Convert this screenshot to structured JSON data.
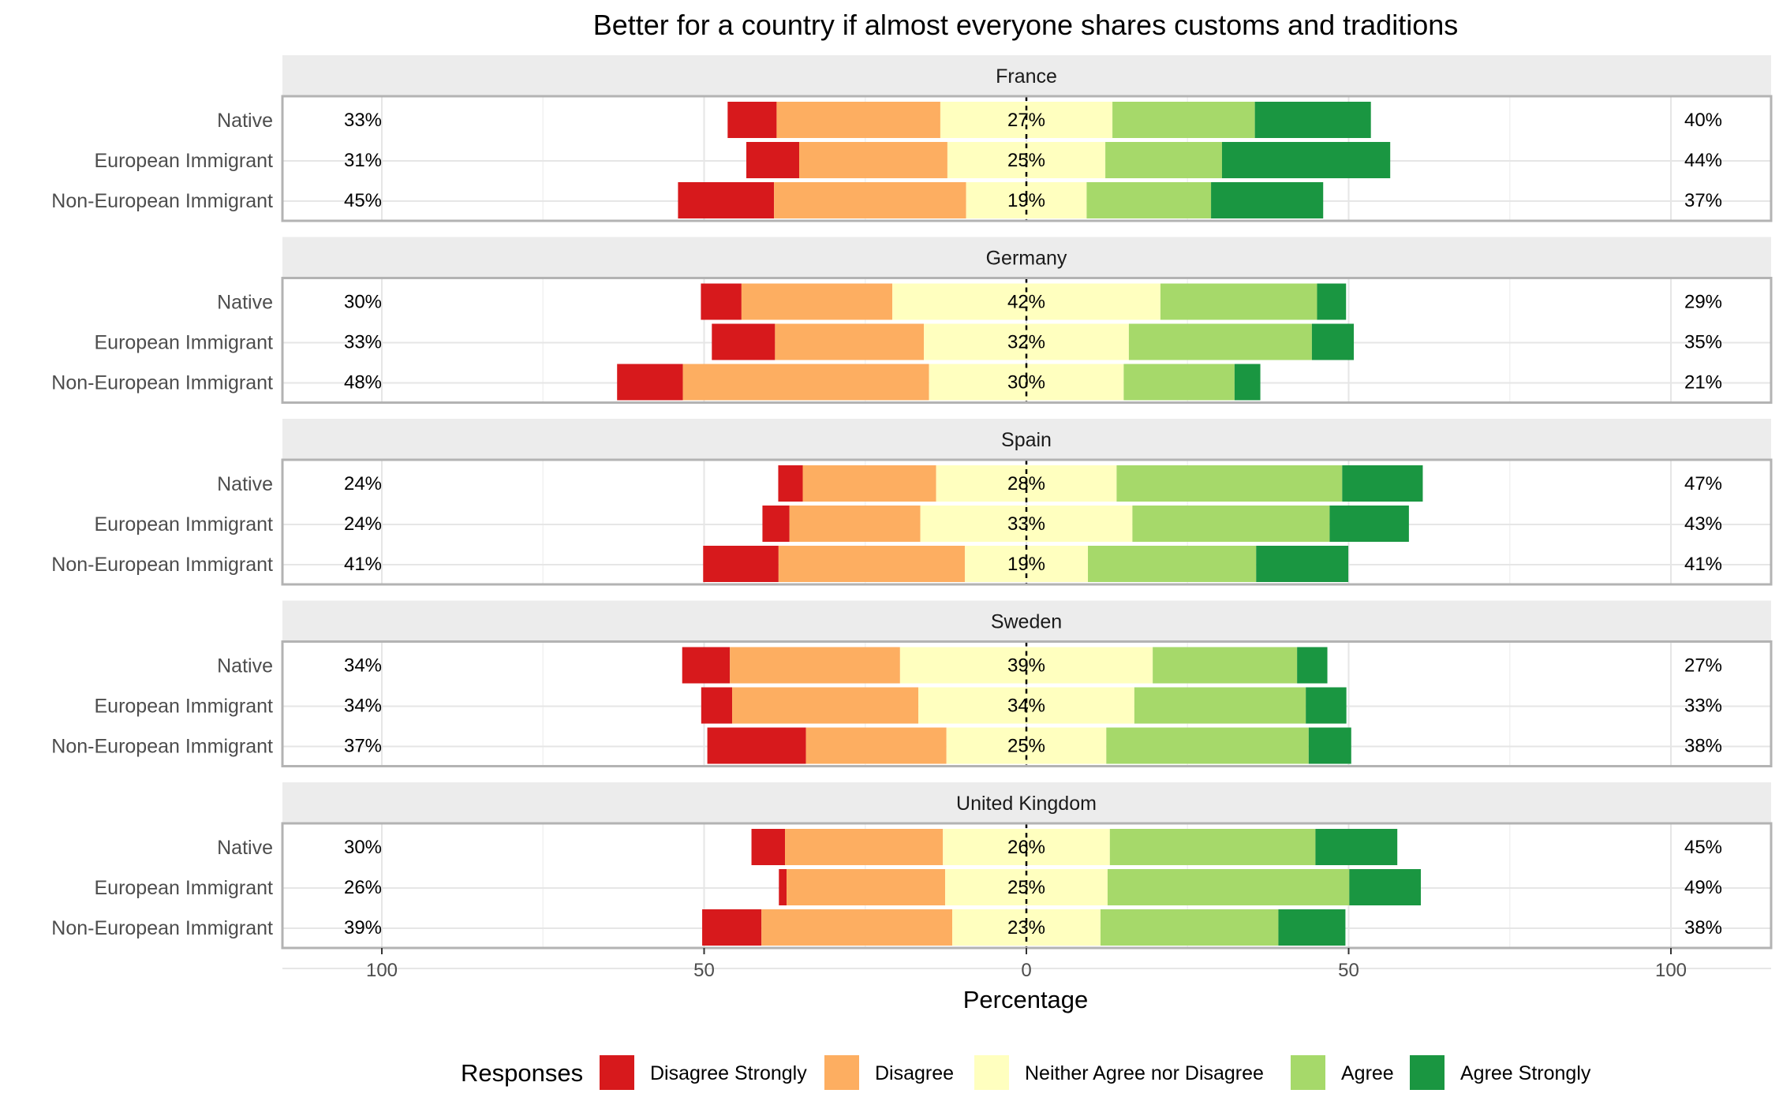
{
  "chart_data": {
    "type": "bar",
    "subtype": "diverging-stacked-horizontal-faceted",
    "title": "Better for a country if almost everyone shares customs and traditions",
    "xlabel": "Percentage",
    "ylabel": "",
    "xlim": [
      -100,
      100
    ],
    "x_ticks": [
      -100,
      -50,
      0,
      50,
      100
    ],
    "x_tick_labels": [
      "100",
      "50",
      "0",
      "50",
      "100"
    ],
    "grid": true,
    "legend": {
      "position": "bottom",
      "title": "Responses",
      "entries": [
        {
          "name": "Disagree Strongly",
          "color": "#d7191c"
        },
        {
          "name": "Disagree",
          "color": "#fdae61"
        },
        {
          "name": "Neither Agree nor Disagree",
          "color": "#ffffbf"
        },
        {
          "name": "Agree",
          "color": "#a6d96a"
        },
        {
          "name": "Agree Strongly",
          "color": "#1a9641"
        }
      ]
    },
    "facets": [
      {
        "name": "France",
        "rows": [
          {
            "label": "Native",
            "values": [
              7.6,
              25.4,
              26.7,
              22.1,
              18.0
            ],
            "left_label": "33%",
            "neutral_label": "27%",
            "right_label": "40%"
          },
          {
            "label": "European Immigrant",
            "values": [
              8.2,
              23.0,
              24.5,
              18.1,
              26.1
            ],
            "left_label": "31%",
            "neutral_label": "25%",
            "right_label": "44%"
          },
          {
            "label": "Non-European Immigrant",
            "values": [
              14.9,
              29.8,
              18.7,
              19.3,
              17.4
            ],
            "left_label": "45%",
            "neutral_label": "19%",
            "right_label": "37%"
          }
        ]
      },
      {
        "name": "Germany",
        "rows": [
          {
            "label": "Native",
            "values": [
              6.3,
              23.4,
              41.6,
              24.3,
              4.5
            ],
            "left_label": "30%",
            "neutral_label": "42%",
            "right_label": "29%"
          },
          {
            "label": "European Immigrant",
            "values": [
              9.8,
              23.1,
              31.8,
              28.4,
              6.5
            ],
            "left_label": "33%",
            "neutral_label": "32%",
            "right_label": "35%"
          },
          {
            "label": "Non-European Immigrant",
            "values": [
              10.2,
              38.2,
              30.2,
              17.2,
              4.0
            ],
            "left_label": "48%",
            "neutral_label": "30%",
            "right_label": "21%"
          }
        ]
      },
      {
        "name": "Spain",
        "rows": [
          {
            "label": "Native",
            "values": [
              3.8,
              20.7,
              28.0,
              35.0,
              12.5
            ],
            "left_label": "24%",
            "neutral_label": "28%",
            "right_label": "47%"
          },
          {
            "label": "European Immigrant",
            "values": [
              4.2,
              20.3,
              32.9,
              30.6,
              12.3
            ],
            "left_label": "24%",
            "neutral_label": "33%",
            "right_label": "43%"
          },
          {
            "label": "Non-European Immigrant",
            "values": [
              11.7,
              28.9,
              19.1,
              26.1,
              14.3
            ],
            "left_label": "41%",
            "neutral_label": "19%",
            "right_label": "41%"
          }
        ]
      },
      {
        "name": "Sweden",
        "rows": [
          {
            "label": "Native",
            "values": [
              7.4,
              26.4,
              39.2,
              22.4,
              4.7
            ],
            "left_label": "34%",
            "neutral_label": "39%",
            "right_label": "27%"
          },
          {
            "label": "European Immigrant",
            "values": [
              4.8,
              28.9,
              33.5,
              26.6,
              6.3
            ],
            "left_label": "34%",
            "neutral_label": "34%",
            "right_label": "33%"
          },
          {
            "label": "Non-European Immigrant",
            "values": [
              15.3,
              21.8,
              24.8,
              31.4,
              6.6
            ],
            "left_label": "37%",
            "neutral_label": "25%",
            "right_label": "38%"
          }
        ]
      },
      {
        "name": "United Kingdom",
        "rows": [
          {
            "label": "Native",
            "values": [
              5.2,
              24.5,
              25.9,
              31.9,
              12.7
            ],
            "left_label": "30%",
            "neutral_label": "26%",
            "right_label": "45%"
          },
          {
            "label": "European Immigrant",
            "values": [
              1.2,
              24.6,
              25.2,
              37.5,
              11.1
            ],
            "left_label": "26%",
            "neutral_label": "25%",
            "right_label": "49%"
          },
          {
            "label": "Non-European Immigrant",
            "values": [
              9.2,
              29.6,
              23.0,
              27.6,
              10.4
            ],
            "left_label": "39%",
            "neutral_label": "23%",
            "right_label": "38%"
          }
        ]
      }
    ]
  }
}
